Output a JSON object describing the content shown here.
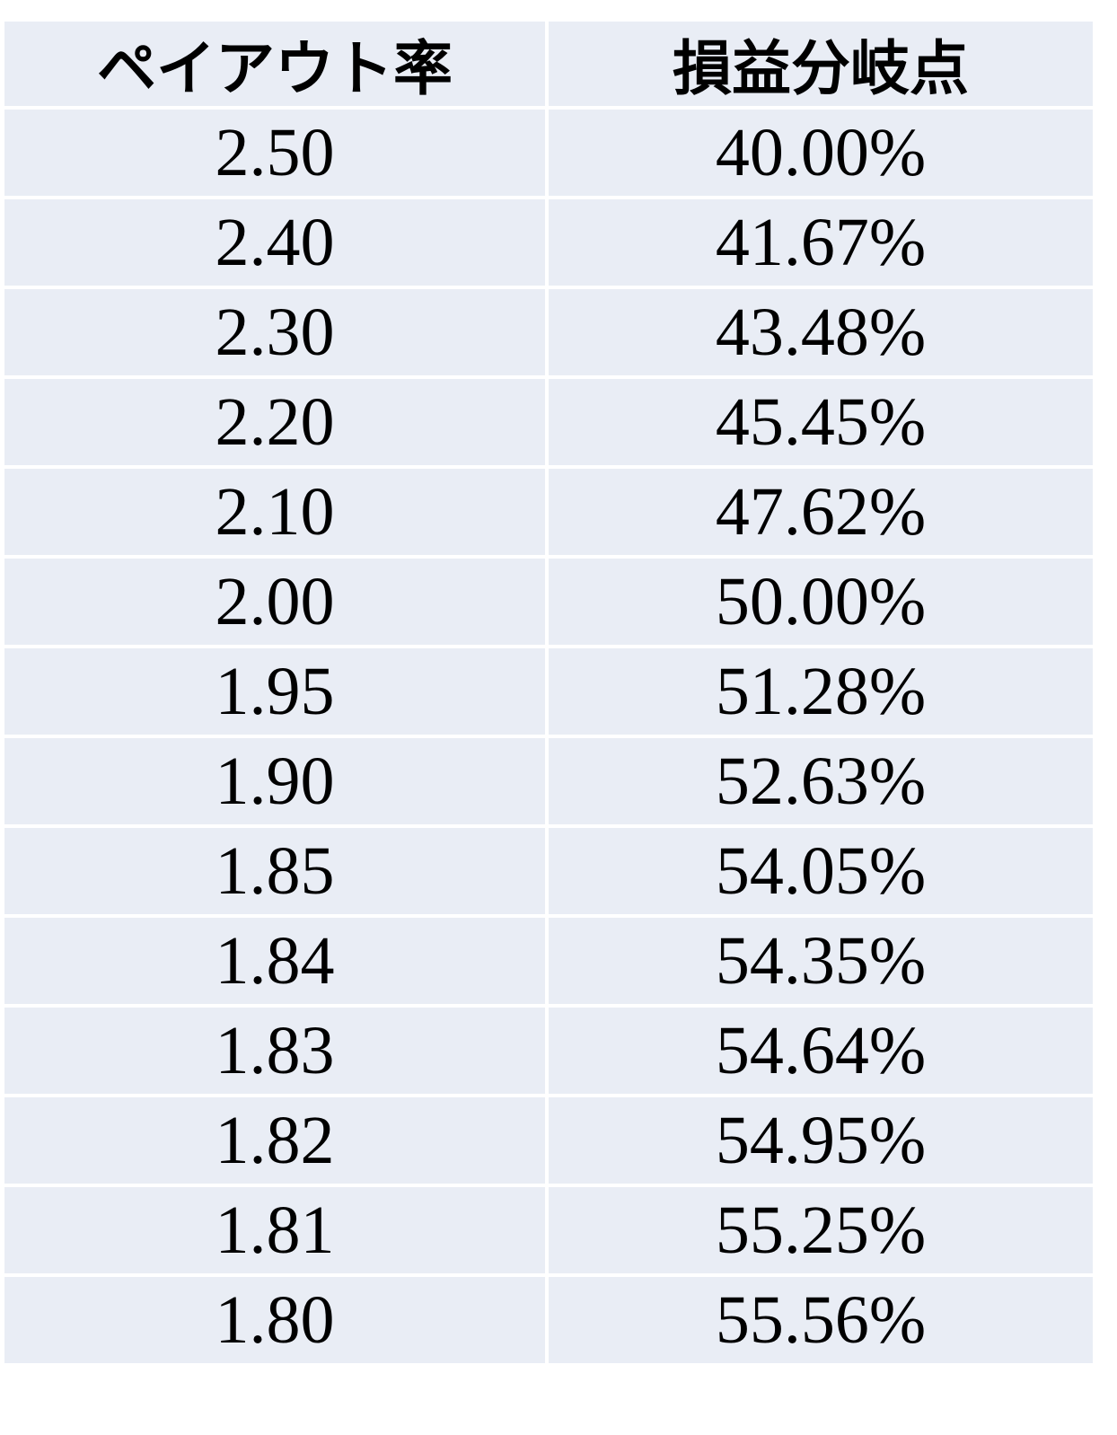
{
  "table": {
    "header": [
      "ペイアウト率",
      "損益分岐点"
    ],
    "rows": [
      [
        "2.50",
        "40.00%"
      ],
      [
        "2.40",
        "41.67%"
      ],
      [
        "2.30",
        "43.48%"
      ],
      [
        "2.20",
        "45.45%"
      ],
      [
        "2.10",
        "47.62%"
      ],
      [
        "2.00",
        "50.00%"
      ],
      [
        "1.95",
        "51.28%"
      ],
      [
        "1.90",
        "52.63%"
      ],
      [
        "1.85",
        "54.05%"
      ],
      [
        "1.84",
        "54.35%"
      ],
      [
        "1.83",
        "54.64%"
      ],
      [
        "1.82",
        "54.95%"
      ],
      [
        "1.81",
        "55.25%"
      ],
      [
        "1.80",
        "55.56%"
      ]
    ]
  }
}
